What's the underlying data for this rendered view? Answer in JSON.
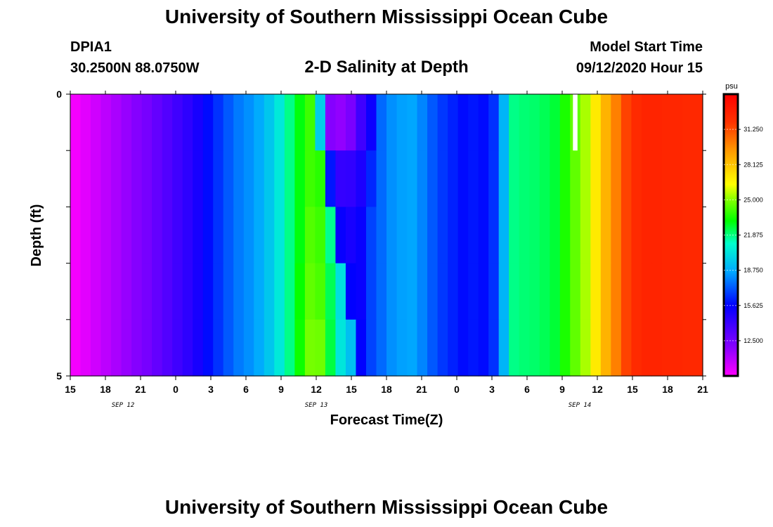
{
  "header": {
    "title": "University of Southern Mississippi Ocean Cube",
    "station": "DPIA1",
    "coords": "30.2500N 88.0750W",
    "subtitle": "2-D Salinity at Depth",
    "model_start_label": "Model Start Time",
    "model_start_value": "09/12/2020 Hour 15"
  },
  "footer": {
    "title": "University of Southern Mississippi Ocean Cube"
  },
  "chart_data": {
    "type": "heatmap",
    "xlabel": "Forecast Time(Z)",
    "ylabel": "Depth (ft)",
    "x_tick_labels": [
      "15",
      "18",
      "21",
      "0",
      "3",
      "6",
      "9",
      "12",
      "15",
      "18",
      "21",
      "0",
      "3",
      "6",
      "9",
      "12",
      "15",
      "18",
      "21"
    ],
    "date_labels": [
      {
        "label": "SEP 12",
        "hour_index": 4.5
      },
      {
        "label": "SEP 13",
        "hour_index": 21
      },
      {
        "label": "SEP 14",
        "hour_index": 43.5
      }
    ],
    "y_tick_labels": [
      "0",
      "5"
    ],
    "ylim": [
      0,
      5
    ],
    "x_hours": 54,
    "depth_levels": 5,
    "colorbar": {
      "units": "psu",
      "min": 9.375,
      "max": 34.375,
      "tick_values": [
        12.5,
        15.625,
        18.75,
        21.875,
        25.0,
        28.125,
        31.25
      ],
      "tick_labels": [
        "12.500",
        "15.625",
        "18.750",
        "21.875",
        "25.000",
        "28.125",
        "31.250"
      ]
    },
    "salinity_by_hour": [
      9.6,
      10.0,
      10.4,
      10.8,
      11.2,
      11.6,
      12.0,
      12.4,
      12.9,
      13.4,
      13.9,
      14.4,
      15.0,
      15.8,
      16.5,
      17.2,
      17.8,
      18.2,
      18.7,
      19.5,
      20.5,
      21.8,
      23.0,
      24.0,
      23.2,
      19.5,
      17.2,
      16.8,
      16.4,
      16.8,
      17.5,
      18.2,
      18.5,
      18.6,
      18.0,
      17.2,
      16.6,
      16.2,
      15.8,
      16.0,
      15.8,
      16.5,
      19.0,
      21.8,
      22.0,
      22.1,
      22.3,
      22.6,
      23.5,
      24.5,
      25.4,
      27.0,
      28.6,
      30.0,
      31.5,
      32.3,
      32.6,
      32.6,
      32.5,
      32.5,
      32.4,
      32.4
    ],
    "depth_adjust": [
      [
        0,
        0,
        0,
        0,
        0,
        0,
        0,
        0,
        0,
        0,
        0,
        0,
        0,
        0,
        0,
        0,
        0,
        0,
        0,
        0,
        0,
        0,
        0,
        0,
        -3.5,
        -7.5,
        -5.5,
        -4.5,
        -2.5,
        -1.5,
        0,
        0
      ],
      [
        0,
        0,
        0,
        0,
        0,
        0,
        0,
        0,
        0,
        0,
        0,
        0,
        0,
        0,
        0,
        0,
        0,
        0,
        0,
        0,
        0,
        0,
        0,
        0,
        0.5,
        -3.5,
        -3,
        -2.5,
        -1.5,
        -0.5,
        0,
        0
      ],
      [
        0,
        0,
        0,
        0,
        0,
        0,
        0,
        0,
        0,
        0,
        0,
        0,
        0,
        0,
        0,
        0,
        0,
        0,
        0,
        0,
        0,
        0,
        0,
        0.3,
        0.8,
        2.2,
        -1.8,
        -1.8,
        -1,
        0,
        0,
        0
      ],
      [
        0,
        0,
        0,
        0,
        0,
        0,
        0,
        0,
        0,
        0,
        0,
        0,
        0,
        0,
        0,
        0,
        0,
        0,
        0,
        0,
        0,
        0,
        0.2,
        0.5,
        1.0,
        2.8,
        3.0,
        -1.2,
        -1.0,
        0,
        0,
        0
      ],
      [
        0,
        0,
        0,
        0,
        0,
        0,
        0,
        0,
        0,
        0,
        0,
        0,
        0,
        0,
        0,
        0,
        0,
        0,
        0,
        0,
        0,
        0,
        0.3,
        0.8,
        1.5,
        3.0,
        3.2,
        2.5,
        -0.8,
        0,
        0,
        0
      ]
    ],
    "missing_cell": {
      "hour_index": 49,
      "depth_level": 0
    }
  }
}
